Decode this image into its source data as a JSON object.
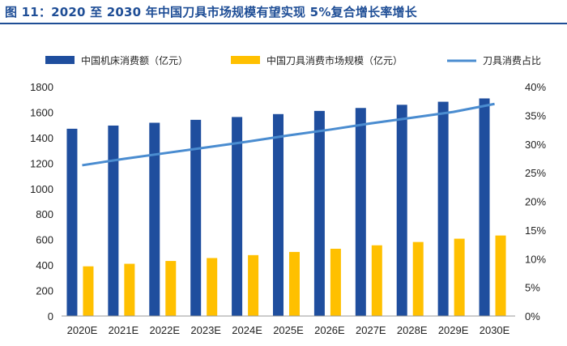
{
  "figure": {
    "title": "图 11：2020 至 2030 年中国刀具市场规模有望实现 5%复合增长率增长"
  },
  "colors": {
    "title": "#1f4e96",
    "machine_tool_bar": "#1f4e9e",
    "cutting_tool_bar": "#ffc000",
    "share_line": "#4a8cd0"
  },
  "chart_data": {
    "type": "bar",
    "categories": [
      "2020E",
      "2021E",
      "2022E",
      "2023E",
      "2024E",
      "2025E",
      "2026E",
      "2027E",
      "2028E",
      "2029E",
      "2030E"
    ],
    "series": [
      {
        "name": "中国机床消费额（亿元）",
        "type": "bar",
        "axis": "left",
        "values": [
          1470,
          1495,
          1517,
          1540,
          1562,
          1585,
          1610,
          1633,
          1658,
          1682,
          1708
        ]
      },
      {
        "name": "中国刀具消费市场规模（亿元）",
        "type": "bar",
        "axis": "right_independent_left",
        "values": [
          390,
          410,
          432,
          455,
          478,
          503,
          528,
          555,
          581,
          607,
          632
        ]
      },
      {
        "name": "刀具消费占比",
        "type": "line",
        "axis": "right",
        "values": [
          26.3,
          27.4,
          28.4,
          29.4,
          30.4,
          31.5,
          32.5,
          33.6,
          34.6,
          35.6,
          37.0
        ]
      }
    ],
    "y_left": {
      "min": 0,
      "max": 1800,
      "ticks": [
        "0",
        "200",
        "400",
        "600",
        "800",
        "1000",
        "1200",
        "1400",
        "1600",
        "1800"
      ]
    },
    "y_right": {
      "min": 0,
      "max": 40,
      "ticks": [
        "0%",
        "5%",
        "10%",
        "15%",
        "20%",
        "25%",
        "30%",
        "35%",
        "40%"
      ]
    },
    "grid": false,
    "legend": "top"
  }
}
